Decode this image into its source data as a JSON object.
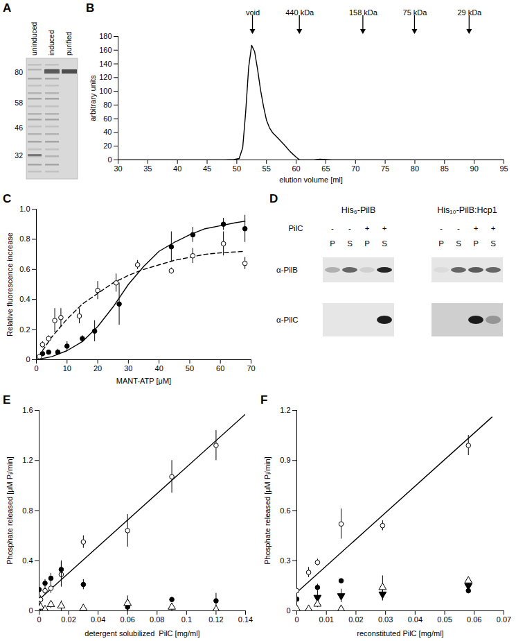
{
  "chart_data": [
    {
      "panel": "B",
      "type": "line",
      "xlabel": "elution volume [ml]",
      "ylabel": "arbitrary units",
      "color": "#000000",
      "x": [
        30,
        35,
        40,
        45,
        48,
        49.5,
        50.4,
        51,
        51.5,
        52,
        52.5,
        53,
        53.5,
        54,
        54.5,
        55,
        55.5,
        56,
        57,
        58,
        59,
        60,
        60.6,
        63,
        64,
        66,
        70,
        80,
        90,
        95
      ],
      "values": [
        0,
        0,
        0,
        0,
        0,
        0.5,
        2,
        18,
        70,
        135,
        167,
        158,
        132,
        102,
        78,
        58,
        47,
        40,
        31,
        22,
        12,
        4,
        0,
        0,
        1,
        0,
        0,
        0,
        0,
        0
      ],
      "xlim": [
        30,
        95
      ],
      "xticks": [
        30,
        35,
        40,
        45,
        50,
        55,
        60,
        65,
        70,
        75,
        80,
        85,
        90,
        95
      ],
      "ylim": [
        0,
        180
      ],
      "yticks": [
        0,
        20,
        40,
        60,
        80,
        100,
        120,
        140,
        160,
        180
      ],
      "annotations": [
        {
          "x": 52.7,
          "label": "void"
        },
        {
          "x": 60.6,
          "label": "440 kDa"
        },
        {
          "x": 71.3,
          "label": "158 kDa"
        },
        {
          "x": 80,
          "label": "75 kDa"
        },
        {
          "x": 89.2,
          "label": "29 kDa"
        }
      ]
    },
    {
      "panel": "C",
      "type": "scatter",
      "xlabel": "MANT-ATP [μM]",
      "ylabel": "Relative fluorescence increase",
      "xlim": [
        0,
        70
      ],
      "xticks": [
        0,
        10,
        20,
        30,
        40,
        50,
        60,
        70
      ],
      "ylim": [
        0,
        1
      ],
      "yticks": [
        0,
        0.2,
        0.4,
        0.6,
        0.8,
        {
          "value": 1,
          "label": "1.0"
        }
      ],
      "series": [
        {
          "type": "line",
          "line_style": "solid",
          "color": "#000000",
          "x": [
            0,
            5,
            10,
            15,
            20,
            25,
            30,
            35,
            40,
            45,
            50,
            55,
            60,
            65,
            68
          ],
          "values": [
            0,
            0.02,
            0.06,
            0.12,
            0.22,
            0.35,
            0.5,
            0.62,
            0.72,
            0.78,
            0.83,
            0.87,
            0.89,
            0.91,
            0.92
          ]
        },
        {
          "type": "line",
          "line_style": "dashed",
          "color": "#000000",
          "x": [
            1,
            2,
            5,
            10,
            15,
            20,
            25,
            30,
            35,
            40,
            45,
            50,
            55,
            60,
            68
          ],
          "values": [
            0.02,
            0.06,
            0.15,
            0.27,
            0.37,
            0.44,
            0.51,
            0.56,
            0.6,
            0.63,
            0.66,
            0.68,
            0.7,
            0.71,
            0.72
          ]
        },
        {
          "marker": "circle",
          "color": "#000000",
          "x": [
            2,
            4,
            7,
            10,
            15,
            19,
            27,
            44,
            51,
            61,
            68
          ],
          "values": [
            0.04,
            0.05,
            0.05,
            0.09,
            0.14,
            0.19,
            0.37,
            0.75,
            0.83,
            0.9,
            0.87
          ],
          "errors": [
            0.01,
            0.01,
            0.02,
            0.03,
            0.02,
            0.07,
            0.14,
            0.1,
            0.05,
            0.04,
            0.09
          ]
        },
        {
          "marker": "circle-open",
          "color": "#000000",
          "x": [
            1,
            2,
            4,
            6,
            8,
            14,
            20,
            26,
            33,
            44,
            51,
            61,
            68
          ],
          "values": [
            0.02,
            0.1,
            0.14,
            0.26,
            0.28,
            0.29,
            0.46,
            0.51,
            0.63,
            0.59,
            0.69,
            0.77,
            0.64
          ],
          "errors": [
            0.01,
            0.02,
            0.02,
            0.08,
            0.06,
            0.05,
            0.06,
            0.06,
            0.03,
            0.02,
            0.05,
            0.08,
            0.04
          ]
        }
      ]
    },
    {
      "panel": "E",
      "type": "scatter",
      "xlabel": "detergent solubilized  PilC [mg/ml]",
      "ylabel": "Phosphate released [μM Pᵢ/min]",
      "xlim": [
        0,
        0.14
      ],
      "xticks": [
        0,
        0.02,
        0.04,
        0.06,
        0.08,
        0.1,
        0.12,
        0.14
      ],
      "ylim": [
        0,
        1.6
      ],
      "yticks": [
        0,
        0.4,
        0.8,
        1.2,
        1.6
      ],
      "series": [
        {
          "type": "line",
          "line_style": "solid",
          "color": "#000000",
          "x": [
            0,
            0.14
          ],
          "values": [
            0.09,
            1.57
          ]
        },
        {
          "marker": "circle-open",
          "color": "#000000",
          "x": [
            0.001,
            0.004,
            0.008,
            0.015,
            0.03,
            0.06,
            0.09,
            0.12
          ],
          "values": [
            0.09,
            0.16,
            0.18,
            0.29,
            0.55,
            0.64,
            1.07,
            1.32
          ],
          "errors": [
            0.03,
            0.03,
            0.04,
            0.1,
            0.05,
            0.13,
            0.13,
            0.12
          ]
        },
        {
          "marker": "circle",
          "color": "#000000",
          "x": [
            0,
            0.004,
            0.008,
            0.015,
            0.03,
            0.06,
            0.09,
            0.12
          ],
          "values": [
            0.17,
            0.22,
            0.26,
            0.33,
            0.21,
            0.03,
            0.09,
            0.08
          ],
          "errors": [
            0.02,
            0.03,
            0.04,
            0.07,
            0.04,
            0.03,
            0.02,
            0.06
          ]
        },
        {
          "marker": "triangle-open",
          "color": "#000000",
          "x": [
            0.001,
            0.004,
            0.008,
            0.015,
            0.03,
            0.06,
            0.09,
            0.12
          ],
          "values": [
            0.03,
            0.01,
            0.05,
            0.04,
            0.02,
            0.06,
            0.03,
            0.01
          ],
          "errors": [
            0.03,
            0.02,
            0.03,
            0.04,
            0.03,
            0.06,
            0.03,
            0.03
          ]
        }
      ]
    },
    {
      "panel": "F",
      "type": "scatter",
      "xlabel": "reconstituted PilC [mg/ml]",
      "ylabel": "Phosphate released [μM Pᵢ/min]",
      "xlim": [
        0,
        0.07
      ],
      "xticks": [
        0,
        0.01,
        0.02,
        0.03,
        0.04,
        0.05,
        0.06,
        0.07
      ],
      "ylim": [
        0,
        1.2
      ],
      "yticks": [
        0,
        0.3,
        0.6,
        0.9,
        1.2
      ],
      "series": [
        {
          "type": "line",
          "line_style": "solid",
          "color": "#000000",
          "x": [
            0,
            0.066
          ],
          "values": [
            0.11,
            1.16
          ]
        },
        {
          "marker": "circle-open",
          "color": "#000000",
          "x": [
            0,
            0.004,
            0.007,
            0.015,
            0.029,
            0.058
          ],
          "values": [
            0.12,
            0.23,
            0.29,
            0.52,
            0.51,
            0.99
          ],
          "errors": [
            0.01,
            0.03,
            0.02,
            0.09,
            0.03,
            0.06
          ]
        },
        {
          "marker": "circle",
          "color": "#000000",
          "x": [
            0,
            0.007,
            0.015,
            0.058
          ],
          "values": [
            0.07,
            0.14,
            0.18,
            0.12
          ],
          "errors": [
            0.01,
            0.02,
            0.01,
            0.01
          ]
        },
        {
          "marker": "triangle-down",
          "color": "#000000",
          "x": [
            0.007,
            0.015,
            0.029,
            0.058
          ],
          "values": [
            0.08,
            0.09,
            0.1,
            0.15
          ],
          "errors": [
            0.04,
            0.04,
            0.04,
            0.02
          ]
        },
        {
          "marker": "triangle-open",
          "color": "#000000",
          "x": [
            0,
            0.004,
            0.007,
            0.015,
            0.029,
            0.058
          ],
          "values": [
            0.01,
            0.01,
            0.04,
            0.01,
            0.14,
            0.18
          ],
          "errors": [
            0.01,
            0.01,
            0.02,
            0.02,
            0.07,
            0.02
          ]
        }
      ]
    }
  ],
  "gel": {
    "panel": "A",
    "lanes": [
      "uninduced",
      "induced",
      "purified"
    ],
    "markers": [
      80,
      58,
      46,
      32
    ]
  },
  "blot": {
    "panel": "D",
    "row_header": "PilC",
    "antibodies": [
      "α-PilB",
      "α-PilC"
    ],
    "groups": [
      {
        "title": "His₆-PilB",
        "pilc": [
          "-",
          "-",
          "+",
          "+"
        ],
        "fractions": [
          "P",
          "S",
          "P",
          "S"
        ]
      },
      {
        "title": "His₁₀-PilB:Hcp1",
        "pilc": [
          "-",
          "-",
          "+",
          "+"
        ],
        "fractions": [
          "P",
          "S",
          "P",
          "S"
        ]
      }
    ]
  }
}
